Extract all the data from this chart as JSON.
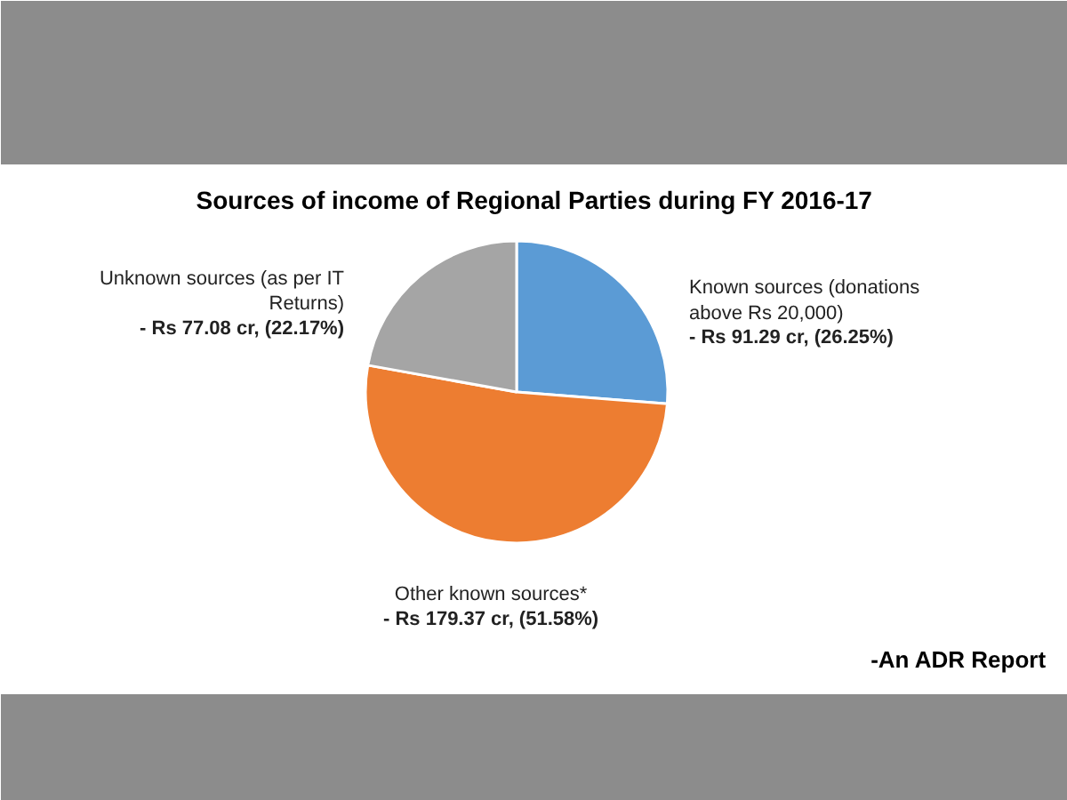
{
  "chart_data": {
    "type": "pie",
    "title": "Sources of income of Regional Parties during FY 2016-17",
    "categories": [
      "Known sources (donations above Rs 20,000)",
      "Other known sources*",
      "Unknown sources (as per IT Returns)"
    ],
    "values": [
      91.29,
      179.37,
      77.08
    ],
    "colors": [
      "#5b9bd5",
      "#ed7d31",
      "#a5a5a5"
    ],
    "value_labels": [
      "- Rs 91.29 cr, (26.25%)",
      "- Rs 179.37 cr, (51.58%)",
      "- Rs 77.08 cr, (22.17%)"
    ],
    "annotations": [
      "-An ADR Report"
    ]
  }
}
